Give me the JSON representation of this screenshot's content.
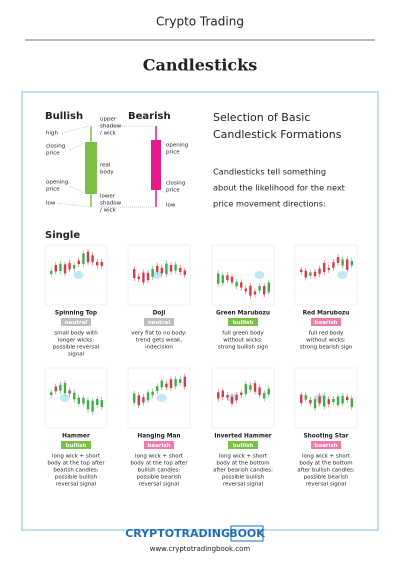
{
  "header": {
    "title": "Crypto Trading"
  },
  "title": "Candlesticks",
  "intro": {
    "bullish": "Bullish",
    "bearish": "Bearish",
    "left_labels": [
      [
        "high"
      ],
      [
        "closing",
        "price"
      ],
      [
        "opening",
        "price"
      ],
      [
        "low"
      ]
    ],
    "middle_labels": [
      [
        "upper",
        "shadow",
        "/ wick"
      ],
      [
        "real",
        "body"
      ],
      [
        "lower",
        "shadow",
        "/ wick"
      ]
    ],
    "right_labels": [
      [
        "opening",
        "price"
      ],
      [
        "closing",
        "price"
      ],
      [
        "low"
      ]
    ],
    "heading": [
      "Selection of Basic",
      "Candlestick Formations"
    ],
    "text": [
      "Candlesticks tell something",
      "about the likelihood for the next",
      "price movement directions:"
    ]
  },
  "single": {
    "heading": "Single",
    "patterns": [
      {
        "name": "Spinning Top",
        "signal": "neutral",
        "description": [
          "small body with",
          "longer wicks:",
          "possible reversal",
          "signal"
        ]
      },
      {
        "name": "Doji",
        "signal": "neutral",
        "description": [
          "very flat to no body:",
          "trend gets weak,",
          "indecision"
        ]
      },
      {
        "name": "Green Marubozu",
        "signal": "bullish",
        "description": [
          "full green body",
          "without wicks:",
          "strong bullish sign"
        ]
      },
      {
        "name": "Red Marubozu",
        "signal": "bearish",
        "description": [
          "full red body",
          "without wicks:",
          "strong bearish sign"
        ]
      },
      {
        "name": "Hammer",
        "signal": "bullish",
        "description": [
          "long wick + short",
          "body at the top after",
          "bearish candles:",
          "possible bullish",
          "reversal signal"
        ]
      },
      {
        "name": "Hanging Man",
        "signal": "bearish",
        "description": [
          "long wick + short",
          "body at the top after",
          "bullish candles:",
          "possible bearish",
          "reversal signal"
        ]
      },
      {
        "name": "Inverted Hammer",
        "signal": "bullish",
        "description": [
          "long wick + short",
          "body at the bottom",
          "after bearish candles:",
          "possible bullish",
          "reversal signal"
        ]
      },
      {
        "name": "Shooting Star",
        "signal": "bearish",
        "description": [
          "long wick + short",
          "body at the bottom",
          "after bullish candles:",
          "possible bearish",
          "reversal signal"
        ]
      }
    ]
  },
  "footer": {
    "logo_main": "CRYPTOTRADING",
    "logo_box": "BOOK",
    "url": "www.cryptotradingbook.com"
  }
}
